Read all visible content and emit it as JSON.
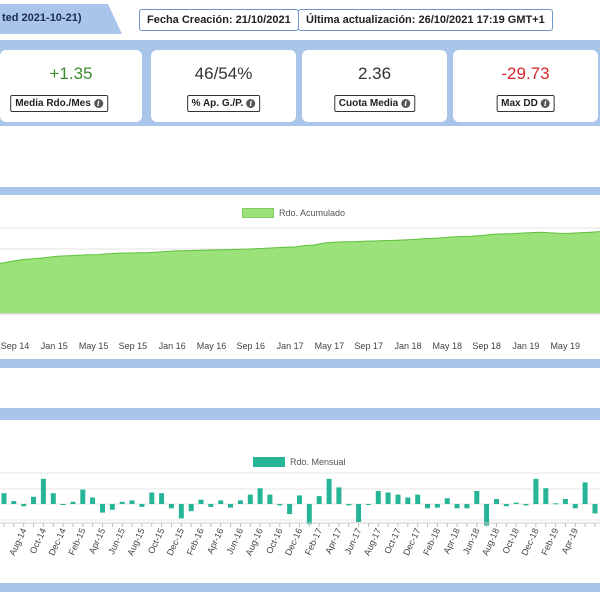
{
  "header": {
    "tab_text": "ted 2021-10-21)",
    "created": "Fecha Creación: 21/10/2021",
    "updated": "Última actualización: 26/10/2021 17:19 GMT+1"
  },
  "kpis": [
    {
      "value": "+1.35",
      "label": "Media Rdo./Mes",
      "color": "#3c8c2c"
    },
    {
      "value": "46/54%",
      "label": "% Ap. G./P.",
      "color": "#333333"
    },
    {
      "value": "2.36",
      "label": "Cuota Media",
      "color": "#333333"
    },
    {
      "value": "-29.73",
      "label": "Max DD",
      "color": "#d9262e"
    }
  ],
  "colors": {
    "band": "#a9c6ea",
    "area_fill": "#9be27a",
    "area_line": "#5fbf3a",
    "bar": "#26b596"
  },
  "icons": {
    "info": "info-icon"
  },
  "chart_data": [
    {
      "type": "area",
      "legend": "Rdo. Acumulado",
      "x_ticks": [
        "Sep 14",
        "Jan 15",
        "May 15",
        "Sep 15",
        "Jan 16",
        "May 16",
        "Sep 16",
        "Jan 17",
        "May 17",
        "Sep 17",
        "Jan 18",
        "May 18",
        "Sep 18",
        "Jan 19",
        "May 19"
      ],
      "series": [
        {
          "name": "Rdo. Acumulado",
          "y": [
            0.0,
            1.5,
            2.8,
            3.6,
            4.3,
            5.2,
            6.0,
            6.3,
            6.6,
            7.0,
            7.2,
            7.8,
            8.3,
            8.5,
            8.7,
            8.8,
            9.2,
            9.8,
            10.2,
            10.4,
            10.6,
            10.8,
            11.0,
            11.2,
            11.4,
            11.6,
            11.9,
            12.3,
            12.8,
            13.1,
            13.4,
            14.5,
            15.0,
            16.6,
            17.2,
            17.5,
            17.6,
            17.9,
            18.2,
            18.5,
            18.7,
            19.0,
            19.4,
            20.0,
            20.3,
            20.8,
            21.5,
            21.8,
            22.0,
            22.6,
            23.5,
            23.8,
            24.1,
            24.6,
            25.0,
            25.2,
            24.7,
            24.3,
            24.5,
            24.9,
            25.3,
            25.8
          ]
        }
      ],
      "grid": true
    },
    {
      "type": "bar",
      "legend": "Rdo. Mensual",
      "categories": [
        "Jun-14",
        "Jul-14",
        "Aug-14",
        "Sep-14",
        "Oct-14",
        "Nov-14",
        "Dec-14",
        "Jan-15",
        "Feb-15",
        "Mar-15",
        "Apr-15",
        "May-15",
        "Jun-15",
        "Jul-15",
        "Aug-15",
        "Sep-15",
        "Oct-15",
        "Nov-15",
        "Dec-15",
        "Jan-16",
        "Feb-16",
        "Mar-16",
        "Apr-16",
        "May-16",
        "Jun-16",
        "Jul-16",
        "Aug-16",
        "Sep-16",
        "Oct-16",
        "Nov-16",
        "Dec-16",
        "Jan-17",
        "Feb-17",
        "Mar-17",
        "Apr-17",
        "May-17",
        "Jun-17",
        "Jul-17",
        "Aug-17",
        "Sep-17",
        "Oct-17",
        "Nov-17",
        "Dec-17",
        "Jan-18",
        "Feb-18",
        "Mar-18",
        "Apr-18",
        "May-18",
        "Jun-18",
        "Jul-18",
        "Aug-18",
        "Sep-18",
        "Oct-18",
        "Nov-18",
        "Dec-18",
        "Jan-19",
        "Feb-19",
        "Mar-19",
        "Apr-19",
        "May-19",
        "Jun-19"
      ],
      "tick_labels": [
        "Aug-14",
        "Oct-14",
        "Dec-14",
        "Feb-15",
        "Apr-15",
        "Jun-15",
        "Aug-15",
        "Oct-15",
        "Dec-15",
        "Feb-16",
        "Apr-16",
        "Jun-16",
        "Aug-16",
        "Oct-16",
        "Dec-16",
        "Feb-17",
        "Apr-17",
        "Jun-17",
        "Aug-17",
        "Oct-17",
        "Dec-17",
        "Feb-18",
        "Apr-18",
        "Jun-18",
        "Aug-18",
        "Oct-18",
        "Dec-18",
        "Feb-19",
        "Apr-19"
      ],
      "values": [
        1.5,
        0.4,
        -0.3,
        1.0,
        3.5,
        1.5,
        0.0,
        0.3,
        2.0,
        0.9,
        -1.2,
        -0.8,
        0.3,
        0.5,
        -0.4,
        1.6,
        1.5,
        -0.6,
        -2.0,
        -1.0,
        0.6,
        -0.4,
        0.5,
        -0.5,
        0.5,
        1.3,
        2.2,
        1.3,
        -0.2,
        -1.4,
        1.2,
        -2.8,
        1.1,
        3.5,
        2.3,
        -0.2,
        -2.5,
        0.0,
        1.8,
        1.6,
        1.3,
        0.9,
        1.3,
        -0.6,
        -0.5,
        0.8,
        -0.6,
        -0.6,
        1.8,
        -3.0,
        0.7,
        -0.3,
        0.2,
        -0.2,
        3.5,
        2.2,
        0.1,
        0.7,
        -0.6,
        3.0,
        -1.3
      ],
      "ylim": [
        -4,
        5
      ]
    }
  ]
}
